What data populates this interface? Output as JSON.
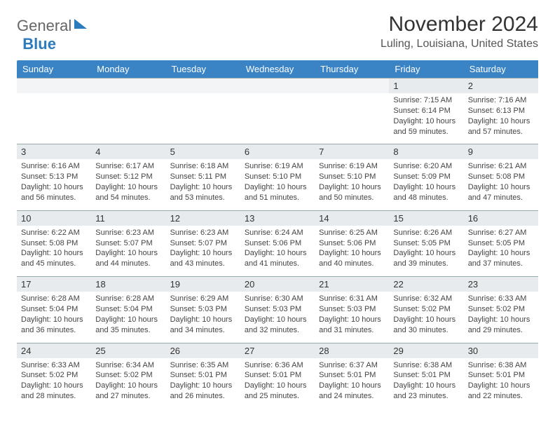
{
  "logo": {
    "part1": "General",
    "part2": "Blue"
  },
  "title": "November 2024",
  "location": "Luling, Louisiana, United States",
  "day_headers": [
    "Sunday",
    "Monday",
    "Tuesday",
    "Wednesday",
    "Thursday",
    "Friday",
    "Saturday"
  ],
  "colors": {
    "header_bg": "#3a83c4",
    "header_text": "#ffffff",
    "numrow_bg": "#e8ebed",
    "logo_blue": "#2b7bbd"
  },
  "weeks": [
    [
      null,
      null,
      null,
      null,
      null,
      {
        "n": "1",
        "sunrise": "7:15 AM",
        "sunset": "6:14 PM",
        "daylight": "10 hours and 59 minutes."
      },
      {
        "n": "2",
        "sunrise": "7:16 AM",
        "sunset": "6:13 PM",
        "daylight": "10 hours and 57 minutes."
      }
    ],
    [
      {
        "n": "3",
        "sunrise": "6:16 AM",
        "sunset": "5:13 PM",
        "daylight": "10 hours and 56 minutes."
      },
      {
        "n": "4",
        "sunrise": "6:17 AM",
        "sunset": "5:12 PM",
        "daylight": "10 hours and 54 minutes."
      },
      {
        "n": "5",
        "sunrise": "6:18 AM",
        "sunset": "5:11 PM",
        "daylight": "10 hours and 53 minutes."
      },
      {
        "n": "6",
        "sunrise": "6:19 AM",
        "sunset": "5:10 PM",
        "daylight": "10 hours and 51 minutes."
      },
      {
        "n": "7",
        "sunrise": "6:19 AM",
        "sunset": "5:10 PM",
        "daylight": "10 hours and 50 minutes."
      },
      {
        "n": "8",
        "sunrise": "6:20 AM",
        "sunset": "5:09 PM",
        "daylight": "10 hours and 48 minutes."
      },
      {
        "n": "9",
        "sunrise": "6:21 AM",
        "sunset": "5:08 PM",
        "daylight": "10 hours and 47 minutes."
      }
    ],
    [
      {
        "n": "10",
        "sunrise": "6:22 AM",
        "sunset": "5:08 PM",
        "daylight": "10 hours and 45 minutes."
      },
      {
        "n": "11",
        "sunrise": "6:23 AM",
        "sunset": "5:07 PM",
        "daylight": "10 hours and 44 minutes."
      },
      {
        "n": "12",
        "sunrise": "6:23 AM",
        "sunset": "5:07 PM",
        "daylight": "10 hours and 43 minutes."
      },
      {
        "n": "13",
        "sunrise": "6:24 AM",
        "sunset": "5:06 PM",
        "daylight": "10 hours and 41 minutes."
      },
      {
        "n": "14",
        "sunrise": "6:25 AM",
        "sunset": "5:06 PM",
        "daylight": "10 hours and 40 minutes."
      },
      {
        "n": "15",
        "sunrise": "6:26 AM",
        "sunset": "5:05 PM",
        "daylight": "10 hours and 39 minutes."
      },
      {
        "n": "16",
        "sunrise": "6:27 AM",
        "sunset": "5:05 PM",
        "daylight": "10 hours and 37 minutes."
      }
    ],
    [
      {
        "n": "17",
        "sunrise": "6:28 AM",
        "sunset": "5:04 PM",
        "daylight": "10 hours and 36 minutes."
      },
      {
        "n": "18",
        "sunrise": "6:28 AM",
        "sunset": "5:04 PM",
        "daylight": "10 hours and 35 minutes."
      },
      {
        "n": "19",
        "sunrise": "6:29 AM",
        "sunset": "5:03 PM",
        "daylight": "10 hours and 34 minutes."
      },
      {
        "n": "20",
        "sunrise": "6:30 AM",
        "sunset": "5:03 PM",
        "daylight": "10 hours and 32 minutes."
      },
      {
        "n": "21",
        "sunrise": "6:31 AM",
        "sunset": "5:03 PM",
        "daylight": "10 hours and 31 minutes."
      },
      {
        "n": "22",
        "sunrise": "6:32 AM",
        "sunset": "5:02 PM",
        "daylight": "10 hours and 30 minutes."
      },
      {
        "n": "23",
        "sunrise": "6:33 AM",
        "sunset": "5:02 PM",
        "daylight": "10 hours and 29 minutes."
      }
    ],
    [
      {
        "n": "24",
        "sunrise": "6:33 AM",
        "sunset": "5:02 PM",
        "daylight": "10 hours and 28 minutes."
      },
      {
        "n": "25",
        "sunrise": "6:34 AM",
        "sunset": "5:02 PM",
        "daylight": "10 hours and 27 minutes."
      },
      {
        "n": "26",
        "sunrise": "6:35 AM",
        "sunset": "5:01 PM",
        "daylight": "10 hours and 26 minutes."
      },
      {
        "n": "27",
        "sunrise": "6:36 AM",
        "sunset": "5:01 PM",
        "daylight": "10 hours and 25 minutes."
      },
      {
        "n": "28",
        "sunrise": "6:37 AM",
        "sunset": "5:01 PM",
        "daylight": "10 hours and 24 minutes."
      },
      {
        "n": "29",
        "sunrise": "6:38 AM",
        "sunset": "5:01 PM",
        "daylight": "10 hours and 23 minutes."
      },
      {
        "n": "30",
        "sunrise": "6:38 AM",
        "sunset": "5:01 PM",
        "daylight": "10 hours and 22 minutes."
      }
    ]
  ],
  "labels": {
    "sunrise": "Sunrise:",
    "sunset": "Sunset:",
    "daylight": "Daylight:"
  }
}
